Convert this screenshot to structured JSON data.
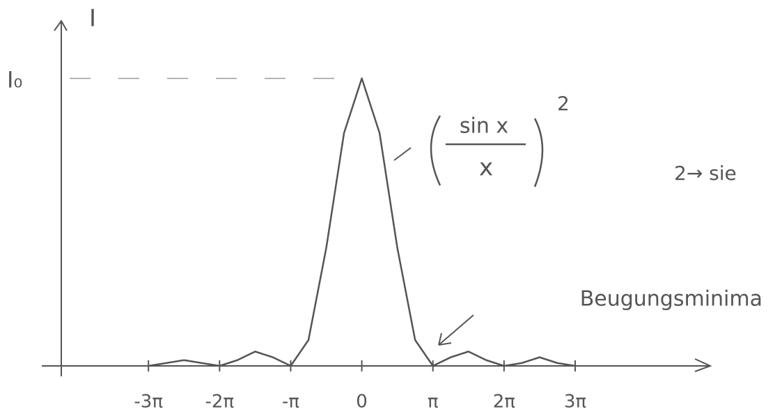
{
  "chart_data": {
    "type": "line",
    "y_axis_label": "I",
    "x": [
      -3,
      -2.75,
      -2.5,
      -2.25,
      -2,
      -1.75,
      -1.5,
      -1.25,
      -1,
      -0.75,
      -0.5,
      -0.25,
      0,
      0.25,
      0.5,
      0.75,
      1,
      1.25,
      1.5,
      1.75,
      2,
      2.25,
      2.5,
      2.75,
      3
    ],
    "series": [
      {
        "color": "#555555",
        "values": [
          0,
          0.01,
          0.02,
          0.01,
          0,
          0.02,
          0.05,
          0.03,
          0,
          0.09,
          0.41,
          0.81,
          1,
          0.81,
          0.41,
          0.09,
          0,
          0.03,
          0.05,
          0.02,
          0,
          0.01,
          0.03,
          0.01,
          0
        ]
      }
    ],
    "xlim": [
      -4.5,
      4.9
    ],
    "ylim": [
      0,
      1.2
    ],
    "xticks": [
      {
        "value": -3,
        "label": "-3π"
      },
      {
        "value": -2,
        "label": "-2π"
      },
      {
        "value": -1,
        "label": "-π"
      },
      0,
      {
        "value": 1,
        "label": "π"
      },
      {
        "value": 2,
        "label": "2π"
      },
      {
        "value": 3,
        "label": "3π"
      }
    ],
    "yticks": [
      {
        "value": 1,
        "label": "I₀"
      }
    ],
    "formula": {
      "numerator": "sin x",
      "denominator": "x",
      "exponent": "2"
    },
    "annotations": [
      "Beugungsminima",
      "2→ sie"
    ]
  }
}
